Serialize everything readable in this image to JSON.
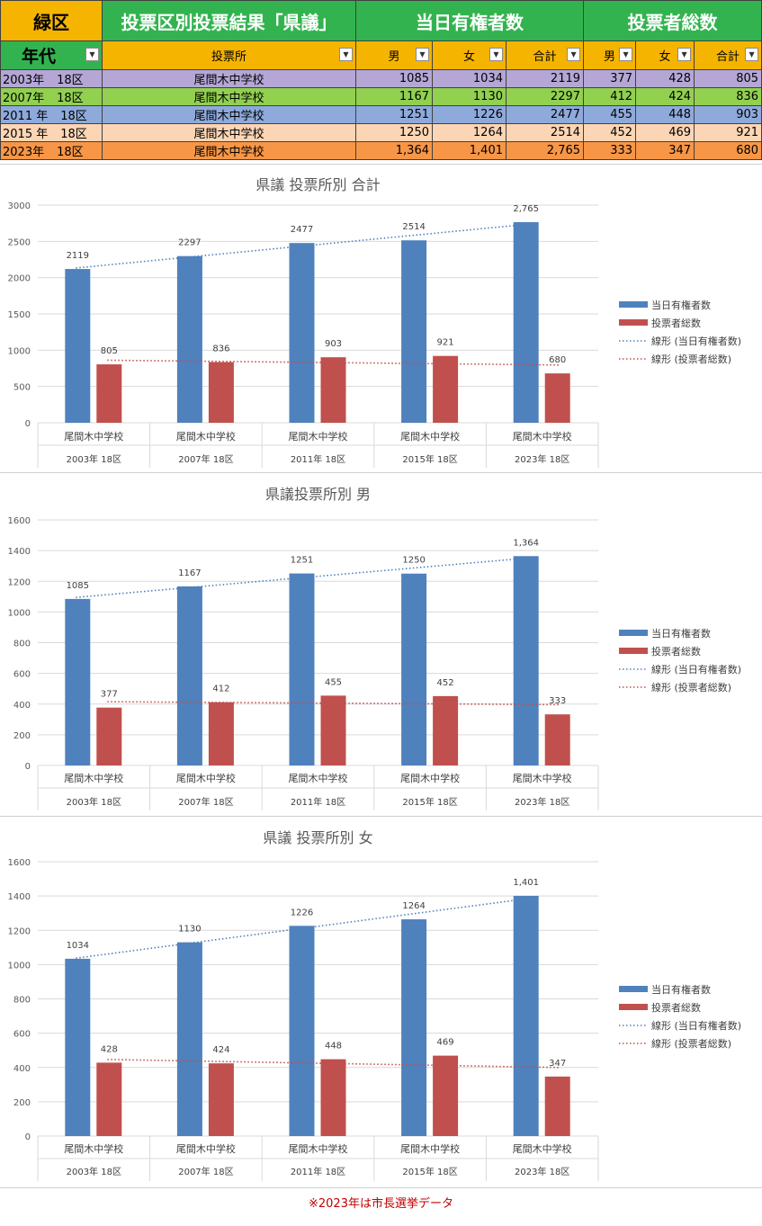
{
  "table": {
    "ward": "緑区",
    "title": "投票区別投票結果「県議」",
    "group_voters": "当日有権者数",
    "group_turnout": "投票者総数",
    "age_label": "年代",
    "place_label": "投票所",
    "male": "男",
    "female": "女",
    "total": "合計",
    "rows": [
      {
        "year": "2003年",
        "district": "18区",
        "place": "尾間木中学校",
        "v_m": "1085",
        "v_f": "1034",
        "v_t": "2119",
        "t_m": "377",
        "t_f": "428",
        "t_t": "805",
        "bg": "#b4a7d6"
      },
      {
        "year": "2007年",
        "district": "18区",
        "place": "尾間木中学校",
        "v_m": "1167",
        "v_f": "1130",
        "v_t": "2297",
        "t_m": "412",
        "t_f": "424",
        "t_t": "836",
        "bg": "#92d050"
      },
      {
        "year": "2011 年",
        "district": "18区",
        "place": "尾間木中学校",
        "v_m": "1251",
        "v_f": "1226",
        "v_t": "2477",
        "t_m": "455",
        "t_f": "448",
        "t_t": "903",
        "bg": "#8eaadb"
      },
      {
        "year": "2015 年",
        "district": "18区",
        "place": "尾間木中学校",
        "v_m": "1250",
        "v_f": "1264",
        "v_t": "2514",
        "t_m": "452",
        "t_f": "469",
        "t_t": "921",
        "bg": "#fcd5b4"
      },
      {
        "year": "2023年",
        "district": "18区",
        "place": "尾間木中学校",
        "v_m": "1,364",
        "v_f": "1,401",
        "v_t": "2,765",
        "t_m": "333",
        "t_f": "347",
        "t_t": "680",
        "bg": "#f79646"
      }
    ]
  },
  "note": "※2023年は市長選挙データ",
  "colors": {
    "voters": "#4f81bd",
    "turnout": "#c0504d"
  },
  "chart_data": [
    {
      "type": "bar",
      "title": "県議  投票所別  合計",
      "categories": [
        "尾間木中学校",
        "尾間木中学校",
        "尾間木中学校",
        "尾間木中学校",
        "尾間木中学校"
      ],
      "category_groups": [
        "2003年    18区",
        "2007年    18区",
        "2011年    18区",
        "2015年    18区",
        "2023年    18区"
      ],
      "series": [
        {
          "name": "当日有権者数",
          "values": [
            2119,
            2297,
            2477,
            2514,
            2765
          ],
          "labels": [
            "2119",
            "2297",
            "2477",
            "2514",
            "2,765"
          ]
        },
        {
          "name": "投票者総数",
          "values": [
            805,
            836,
            903,
            921,
            680
          ],
          "labels": [
            "805",
            "836",
            "903",
            "921",
            "680"
          ]
        }
      ],
      "trendlines": [
        {
          "name": "線形 (当日有権者数)",
          "series": 0
        },
        {
          "name": "線形 (投票者総数)",
          "series": 1
        }
      ],
      "ylim": [
        0,
        3000
      ],
      "yticks": [
        "0",
        "500",
        "1000",
        "1500",
        "2000",
        "2500",
        "3000"
      ],
      "grid": true,
      "legend": "right"
    },
    {
      "type": "bar",
      "title": "県議投票所別  男",
      "categories": [
        "尾間木中学校",
        "尾間木中学校",
        "尾間木中学校",
        "尾間木中学校",
        "尾間木中学校"
      ],
      "category_groups": [
        "2003年    18区",
        "2007年    18区",
        "2011年    18区",
        "2015年    18区",
        "2023年    18区"
      ],
      "series": [
        {
          "name": "当日有権者数",
          "values": [
            1085,
            1167,
            1251,
            1250,
            1364
          ],
          "labels": [
            "1085",
            "1167",
            "1251",
            "1250",
            "1,364"
          ]
        },
        {
          "name": "投票者総数",
          "values": [
            377,
            412,
            455,
            452,
            333
          ],
          "labels": [
            "377",
            "412",
            "455",
            "452",
            "333"
          ]
        }
      ],
      "trendlines": [
        {
          "name": "線形 (当日有権者数)",
          "series": 0
        },
        {
          "name": "線形 (投票者総数)",
          "series": 1
        }
      ],
      "ylim": [
        0,
        1600
      ],
      "yticks": [
        "0",
        "200",
        "400",
        "600",
        "800",
        "1000",
        "1200",
        "1400",
        "1600"
      ],
      "grid": true,
      "legend": "right"
    },
    {
      "type": "bar",
      "title": "県議  投票所別  女",
      "categories": [
        "尾間木中学校",
        "尾間木中学校",
        "尾間木中学校",
        "尾間木中学校",
        "尾間木中学校"
      ],
      "category_groups": [
        "2003年    18区",
        "2007年    18区",
        "2011年    18区",
        "2015年    18区",
        "2023年    18区"
      ],
      "series": [
        {
          "name": "当日有権者数",
          "values": [
            1034,
            1130,
            1226,
            1264,
            1401
          ],
          "labels": [
            "1034",
            "1130",
            "1226",
            "1264",
            "1,401"
          ]
        },
        {
          "name": "投票者総数",
          "values": [
            428,
            424,
            448,
            469,
            347
          ],
          "labels": [
            "428",
            "424",
            "448",
            "469",
            "347"
          ]
        }
      ],
      "trendlines": [
        {
          "name": "線形 (当日有権者数)",
          "series": 0
        },
        {
          "name": "線形 (投票者総数)",
          "series": 1
        }
      ],
      "ylim": [
        0,
        1600
      ],
      "yticks": [
        "0",
        "200",
        "400",
        "600",
        "800",
        "1000",
        "1200",
        "1400",
        "1600"
      ],
      "grid": true,
      "legend": "right"
    }
  ]
}
